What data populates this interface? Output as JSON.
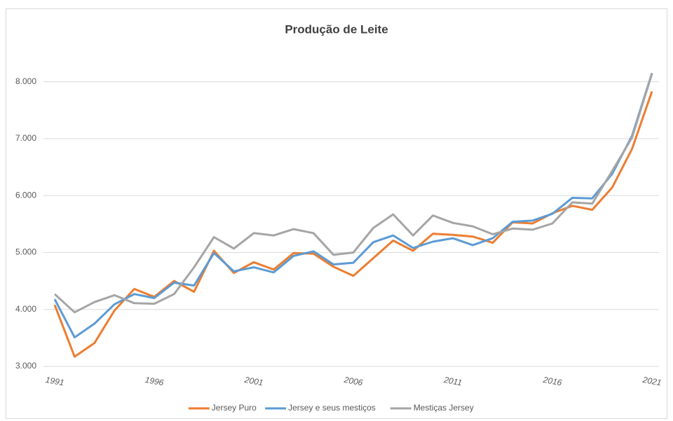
{
  "chart_data": {
    "type": "line",
    "title": "Produção de Leite",
    "x": [
      1991,
      1992,
      1993,
      1994,
      1995,
      1996,
      1997,
      1998,
      1999,
      2000,
      2001,
      2002,
      2003,
      2004,
      2005,
      2006,
      2007,
      2008,
      2009,
      2010,
      2011,
      2012,
      2013,
      2014,
      2015,
      2016,
      2017,
      2018,
      2019,
      2020,
      2021
    ],
    "xlim": [
      1991,
      2021
    ],
    "xticks": [
      1991,
      1996,
      2001,
      2006,
      2011,
      2016,
      2021
    ],
    "ylim": [
      3000,
      8500
    ],
    "yticks": [
      {
        "value": 3000,
        "label": "3.000"
      },
      {
        "value": 4000,
        "label": "4.000"
      },
      {
        "value": 5000,
        "label": "5.000"
      },
      {
        "value": 6000,
        "label": "6.000"
      },
      {
        "value": 7000,
        "label": "7.000"
      },
      {
        "value": 8000,
        "label": "8.000"
      }
    ],
    "grid": true,
    "legend": "bottom",
    "series": [
      {
        "name": "Jersey Puro",
        "color": "#ed7d31",
        "values": [
          4080,
          3170,
          3410,
          3980,
          4360,
          4220,
          4500,
          4310,
          5030,
          4640,
          4830,
          4700,
          4990,
          4980,
          4750,
          4590,
          4900,
          5210,
          5030,
          5330,
          5310,
          5280,
          5170,
          5530,
          5510,
          5690,
          5820,
          5750,
          6140,
          6820,
          7830
        ]
      },
      {
        "name": "Jersey e seus mestiços",
        "color": "#5b9bd5",
        "values": [
          4180,
          3510,
          3750,
          4090,
          4270,
          4200,
          4470,
          4420,
          4990,
          4670,
          4740,
          4650,
          4940,
          5020,
          4790,
          4820,
          5180,
          5300,
          5080,
          5190,
          5250,
          5130,
          5250,
          5540,
          5560,
          5680,
          5960,
          5950,
          6380,
          7050,
          8150
        ]
      },
      {
        "name": "Mestiças Jersey",
        "color": "#a5a5a5",
        "values": [
          4270,
          3950,
          4130,
          4250,
          4110,
          4100,
          4270,
          4740,
          5270,
          5070,
          5340,
          5300,
          5410,
          5340,
          4960,
          5000,
          5430,
          5670,
          5300,
          5650,
          5520,
          5460,
          5320,
          5420,
          5400,
          5510,
          5880,
          5860,
          6430,
          7020,
          8140
        ]
      }
    ]
  }
}
